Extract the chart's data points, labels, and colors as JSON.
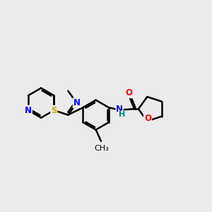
{
  "bg_color": "#ebebeb",
  "bond_color": "#000000",
  "bond_width": 1.8,
  "atom_colors": {
    "N": "#0000ff",
    "S": "#ccaa00",
    "O": "#ff0000",
    "NH_N": "#0000ff",
    "NH_H": "#008080"
  },
  "font_size": 8.5,
  "fig_size": [
    3.0,
    3.0
  ],
  "dpi": 100
}
